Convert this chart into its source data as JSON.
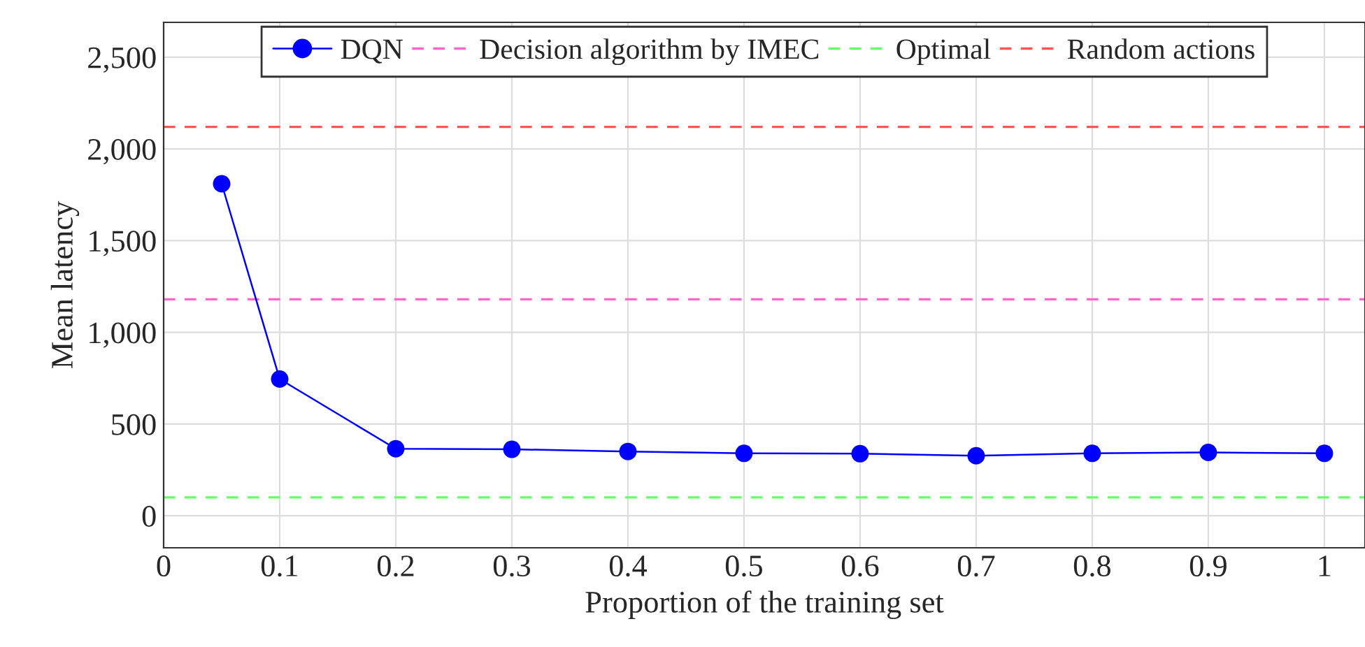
{
  "chart_data": {
    "type": "line",
    "xlabel": "Proportion of the training set",
    "ylabel": "Mean latency",
    "xlim": [
      0,
      1.035
    ],
    "xticks": [
      0,
      0.1,
      0.2,
      0.3,
      0.4,
      0.5,
      0.6,
      0.7,
      0.8,
      0.9,
      1
    ],
    "ylim": [
      -175,
      2690
    ],
    "yticks": [
      {
        "value": 0,
        "label": "0"
      },
      {
        "value": 500,
        "label": "500"
      },
      {
        "value": 1000,
        "label": "1,000"
      },
      {
        "value": 1500,
        "label": "1,500"
      },
      {
        "value": 2000,
        "label": "2,000"
      },
      {
        "value": 2500,
        "label": "2,500"
      }
    ],
    "x": [
      0.05,
      0.1,
      0.2,
      0.3,
      0.4,
      0.5,
      0.6,
      0.7,
      0.8,
      0.9,
      1
    ],
    "series": [
      {
        "name": "DQN",
        "color": "#0000ff",
        "values": [
          1810,
          745,
          365,
          362,
          350,
          340,
          338,
          327,
          340,
          345,
          340
        ]
      }
    ],
    "ref_lines": [
      {
        "axis": "y",
        "value": 1180,
        "label": "Decision algorithm by IMEC",
        "color": "#ff66cc",
        "line_style": "dashed"
      },
      {
        "axis": "y",
        "value": 100,
        "label": "Optimal",
        "color": "#66ff66",
        "line_style": "dashed"
      },
      {
        "axis": "y",
        "value": 2120,
        "label": "Random actions",
        "color": "#ff5555",
        "line_style": "dashed"
      }
    ],
    "marker": "circle",
    "line_style": "solid",
    "grid": true,
    "legend": "top"
  }
}
